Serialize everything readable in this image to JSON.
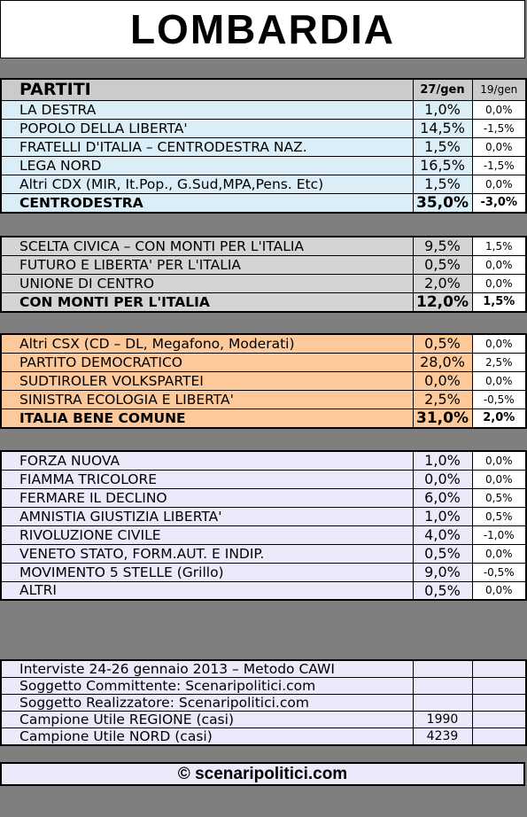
{
  "title": "LOMBARDIA",
  "header": {
    "party_label": "PARTITI",
    "col_current": "27/gen",
    "col_previous": "19/gen"
  },
  "chart_data": {
    "type": "table",
    "title": "LOMBARDIA",
    "columns": [
      "PARTITI",
      "27/gen",
      "19/gen"
    ],
    "groups": [
      {
        "color": "#dbeef7",
        "rows": [
          {
            "name": "LA DESTRA",
            "value": "1,0%",
            "change": "0,0%"
          },
          {
            "name": "POPOLO DELLA LIBERTA'",
            "value": "14,5%",
            "change": "-1,5%"
          },
          {
            "name": "FRATELLI D'ITALIA – CENTRODESTRA NAZ.",
            "value": "1,5%",
            "change": "0,0%"
          },
          {
            "name": "LEGA NORD",
            "value": "16,5%",
            "change": "-1,5%"
          },
          {
            "name": "Altri CDX (MIR, It.Pop., G.Sud,MPA,Pens. Etc)",
            "value": "1,5%",
            "change": "0,0%"
          }
        ],
        "total": {
          "name": "CENTRODESTRA",
          "value": "35,0%",
          "change": "-3,0%"
        }
      },
      {
        "color": "#d4d4d4",
        "rows": [
          {
            "name": "SCELTA CIVICA – CON MONTI PER L'ITALIA",
            "value": "9,5%",
            "change": "1,5%"
          },
          {
            "name": "FUTURO E LIBERTA' PER L'ITALIA",
            "value": "0,5%",
            "change": "0,0%"
          },
          {
            "name": "UNIONE DI CENTRO",
            "value": "2,0%",
            "change": "0,0%"
          }
        ],
        "total": {
          "name": "CON MONTI PER L'ITALIA",
          "value": "12,0%",
          "change": "1,5%"
        }
      },
      {
        "color": "#fdc99a",
        "rows": [
          {
            "name": "Altri CSX (CD – DL, Megafono, Moderati)",
            "value": "0,5%",
            "change": "0,0%"
          },
          {
            "name": "PARTITO DEMOCRATICO",
            "value": "28,0%",
            "change": "2,5%"
          },
          {
            "name": "SUDTIROLER VOLKSPARTEI",
            "value": "0,0%",
            "change": "0,0%"
          },
          {
            "name": "SINISTRA ECOLOGIA E LIBERTA'",
            "value": "2,5%",
            "change": "-0,5%"
          }
        ],
        "total": {
          "name": "ITALIA BENE COMUNE",
          "value": "31,0%",
          "change": "2,0%"
        }
      },
      {
        "color": "#ece9fb",
        "rows": [
          {
            "name": "FORZA NUOVA",
            "value": "1,0%",
            "change": "0,0%"
          },
          {
            "name": "FIAMMA TRICOLORE",
            "value": "0,0%",
            "change": "0,0%"
          },
          {
            "name": "FERMARE IL DECLINO",
            "value": "6,0%",
            "change": "0,5%"
          },
          {
            "name": "AMNISTIA GIUSTIZIA LIBERTA'",
            "value": "1,0%",
            "change": "0,5%"
          },
          {
            "name": "RIVOLUZIONE CIVILE",
            "value": "4,0%",
            "change": "-1,0%"
          },
          {
            "name": "VENETO STATO, FORM.AUT. E INDIP.",
            "value": "0,5%",
            "change": "0,0%"
          },
          {
            "name": "MOVIMENTO 5 STELLE (Grillo)",
            "value": "9,0%",
            "change": "-0,5%"
          },
          {
            "name": "ALTRI",
            "value": "0,5%",
            "change": "0,0%"
          }
        ]
      }
    ]
  },
  "info": [
    {
      "label": "Interviste 24-26 gennaio 2013 – Metodo CAWI",
      "value": ""
    },
    {
      "label": "Soggetto Committente: Scenaripolitici.com",
      "value": ""
    },
    {
      "label": "Soggetto Realizzatore: Scenaripolitici.com",
      "value": ""
    },
    {
      "label": "Campione Utile REGIONE (casi)",
      "value": "1990"
    },
    {
      "label": "Campione Utile NORD (casi)",
      "value": "4239"
    }
  ],
  "footer": "© scenaripolitici.com"
}
